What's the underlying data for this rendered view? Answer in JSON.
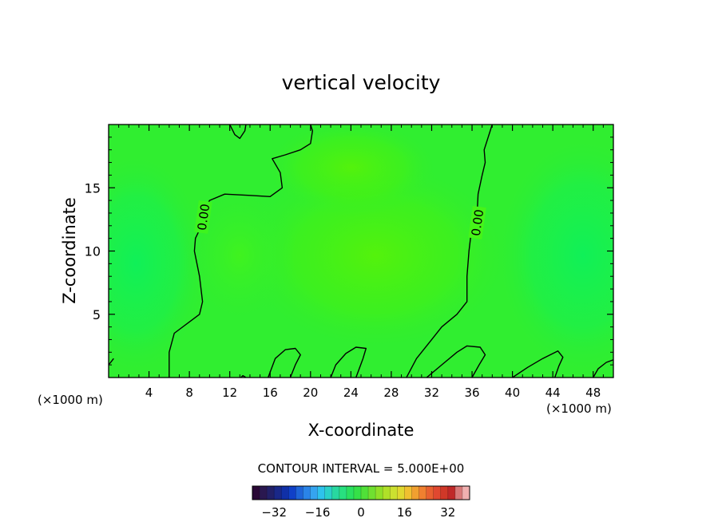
{
  "chart_data": {
    "type": "heatmap",
    "title": "vertical velocity",
    "xlabel": "X-coordinate",
    "ylabel": "Z-coordinate",
    "x_unit_left": "(×1000 m)",
    "x_unit_right": "(×1000 m)",
    "xlim": [
      0,
      50
    ],
    "ylim": [
      0,
      20
    ],
    "x_ticks": [
      4,
      8,
      12,
      16,
      20,
      24,
      28,
      32,
      36,
      40,
      44,
      48
    ],
    "y_ticks": [
      5,
      10,
      15
    ],
    "contour_interval_text": "CONTOUR INTERVAL = 5.000E+00",
    "contour_labels": [
      "0.00",
      "0.00"
    ],
    "contours": [
      [
        [
          6.0,
          0
        ],
        [
          6.0,
          2
        ],
        [
          6.5,
          3.5
        ],
        [
          9,
          5
        ],
        [
          9.3,
          6
        ],
        [
          9,
          8
        ],
        [
          8.5,
          10
        ],
        [
          8.6,
          11
        ],
        [
          9.2,
          12
        ],
        [
          9.3,
          13
        ],
        [
          10,
          14
        ],
        [
          11.5,
          14.5
        ],
        [
          14,
          14.4
        ],
        [
          16,
          14.3
        ],
        [
          17.2,
          15
        ],
        [
          17,
          16.2
        ],
        [
          16.2,
          17.3
        ],
        [
          17.5,
          17.6
        ],
        [
          19,
          18
        ],
        [
          20,
          18.5
        ],
        [
          20.2,
          19.5
        ],
        [
          20,
          20
        ]
      ],
      [
        [
          12,
          20
        ],
        [
          12.5,
          19.2
        ],
        [
          13,
          18.9
        ],
        [
          13.5,
          19.5
        ],
        [
          13.6,
          20
        ]
      ],
      [
        [
          29.5,
          0
        ],
        [
          30.5,
          1.5
        ],
        [
          32,
          3
        ],
        [
          33,
          4
        ],
        [
          34.5,
          5
        ],
        [
          35.5,
          6
        ],
        [
          35.5,
          8
        ],
        [
          35.7,
          10
        ],
        [
          36,
          12
        ],
        [
          36.5,
          13
        ],
        [
          36.6,
          14.5
        ],
        [
          37,
          16
        ],
        [
          37.3,
          17
        ],
        [
          37.2,
          18
        ],
        [
          37.8,
          19.5
        ],
        [
          38,
          20
        ]
      ],
      [
        [
          15.8,
          0
        ],
        [
          16.5,
          1.5
        ],
        [
          17.5,
          2.2
        ],
        [
          18.5,
          2.3
        ],
        [
          19,
          1.8
        ],
        [
          18.5,
          1
        ],
        [
          18,
          0
        ]
      ],
      [
        [
          22,
          0
        ],
        [
          22.5,
          1
        ],
        [
          23.5,
          1.9
        ],
        [
          24.5,
          2.4
        ],
        [
          25.5,
          2.3
        ],
        [
          25.2,
          1.5
        ],
        [
          24.5,
          0
        ]
      ],
      [
        [
          31.5,
          0
        ],
        [
          33,
          1
        ],
        [
          34.5,
          2
        ],
        [
          35.5,
          2.5
        ],
        [
          36.8,
          2.4
        ],
        [
          37.3,
          1.8
        ],
        [
          36.7,
          1
        ],
        [
          36,
          0
        ]
      ],
      [
        [
          40,
          0
        ],
        [
          41.5,
          0.8
        ],
        [
          43,
          1.5
        ],
        [
          44.5,
          2.1
        ],
        [
          45,
          1.6
        ],
        [
          44.6,
          0.9
        ],
        [
          44.2,
          0
        ]
      ],
      [
        [
          48,
          0
        ],
        [
          48.5,
          0.7
        ],
        [
          49.3,
          1.2
        ],
        [
          50,
          1.4
        ]
      ],
      [
        [
          0,
          1.0
        ],
        [
          0.3,
          1.3
        ],
        [
          0.5,
          1.5
        ]
      ],
      [
        [
          13.1,
          0
        ],
        [
          13.3,
          0.15
        ],
        [
          13.6,
          0
        ]
      ]
    ],
    "colorbar": {
      "ticks": [
        -32,
        -16,
        0,
        16,
        32
      ],
      "tick_labels": [
        "−32",
        "−16",
        "0",
        "16",
        "32"
      ],
      "range": [
        -40,
        40
      ],
      "colors": [
        "#2a0836",
        "#2a1850",
        "#222068",
        "#1a2888",
        "#1030a8",
        "#1040c8",
        "#1e64d8",
        "#2a84e8",
        "#35a4f0",
        "#2ec2ec",
        "#2ad0c8",
        "#28d8a0",
        "#28e080",
        "#2ae060",
        "#35e048",
        "#50e038",
        "#70e030",
        "#90e028",
        "#b0e028",
        "#cce030",
        "#e0d830",
        "#f0c030",
        "#f0a030",
        "#f08030",
        "#e86030",
        "#e04830",
        "#d03828",
        "#c02828",
        "#d87878",
        "#f0b0b0"
      ]
    },
    "field_colors": {
      "base": "#30ee30",
      "light_green": "#3ef41e",
      "yellow_green": "#52f20a",
      "mint_green": "#18f050"
    }
  }
}
